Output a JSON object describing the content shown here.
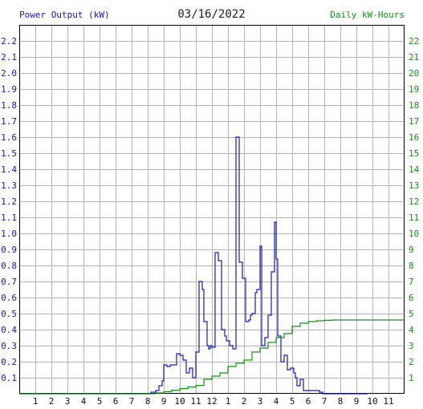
{
  "header": {
    "left_title": "Power Output (kW)",
    "center_title": "03/16/2022",
    "right_title": "Daily kW-Hours"
  },
  "colors": {
    "power_series": "#1a1ab4",
    "energy_series": "#1a8c1a",
    "left_axis_text": "#1a1aa0",
    "right_axis_text": "#1a8c1a",
    "grid": "#b4b4b4",
    "frame": "#000000"
  },
  "chart_data": {
    "type": "line",
    "title": "03/16/2022",
    "grid": true,
    "x_tick_labels": [
      "1",
      "2",
      "3",
      "4",
      "5",
      "6",
      "7",
      "8",
      "9",
      "10",
      "11",
      "12",
      "1",
      "2",
      "3",
      "4",
      "5",
      "6",
      "7",
      "8",
      "9",
      "10",
      "11"
    ],
    "x_tick_hours": [
      1,
      2,
      3,
      4,
      5,
      6,
      7,
      8,
      9,
      10,
      11,
      12,
      13,
      14,
      15,
      16,
      17,
      18,
      19,
      20,
      21,
      22,
      23
    ],
    "xlim": [
      0,
      24
    ],
    "y_left": {
      "label": "Power Output (kW)",
      "lim": [
        0,
        2.3
      ],
      "tick_labels": [
        "0.1",
        "0.2",
        "0.3",
        "0.4",
        "0.5",
        "0.6",
        "0.7",
        "0.8",
        "0.9",
        "1.0",
        "1.1",
        "1.2",
        "1.3",
        "1.4",
        "1.5",
        "1.6",
        "1.7",
        "1.8",
        "1.9",
        "2.0",
        "2.1",
        "2.2"
      ]
    },
    "y_right": {
      "label": "Daily kW-Hours",
      "lim": [
        0,
        23
      ],
      "tick_labels": [
        "1",
        "2",
        "3",
        "4",
        "5",
        "6",
        "7",
        "8",
        "9",
        "10",
        "11",
        "12",
        "13",
        "14",
        "15",
        "16",
        "17",
        "18",
        "19",
        "20",
        "21",
        "22"
      ]
    },
    "series": [
      {
        "name": "Power Output (kW)",
        "axis": "left",
        "x": [
          0,
          8.0,
          8.2,
          8.5,
          8.7,
          8.9,
          9.0,
          9.2,
          9.4,
          9.6,
          9.8,
          10.0,
          10.2,
          10.4,
          10.6,
          10.8,
          11.0,
          11.2,
          11.4,
          11.5,
          11.7,
          11.8,
          11.9,
          12.0,
          12.2,
          12.4,
          12.6,
          12.8,
          12.9,
          13.1,
          13.3,
          13.5,
          13.7,
          13.9,
          14.1,
          14.3,
          14.4,
          14.5,
          14.7,
          14.8,
          15.0,
          15.1,
          15.3,
          15.5,
          15.7,
          15.9,
          16.0,
          16.1,
          16.3,
          16.5,
          16.7,
          16.9,
          17.1,
          17.2,
          17.3,
          17.5,
          17.7,
          17.9,
          18.1,
          18.3,
          18.5,
          18.7,
          18.9,
          19.1,
          19.3,
          19.5,
          19.7,
          20.0,
          20.5,
          20.6,
          21.0,
          21.6,
          21.7
        ],
        "y": [
          0,
          0,
          0.01,
          0.02,
          0.05,
          0.08,
          0.18,
          0.17,
          0.18,
          0.18,
          0.25,
          0.24,
          0.21,
          0.13,
          0.16,
          0.1,
          0.26,
          0.7,
          0.65,
          0.45,
          0.3,
          0.28,
          0.3,
          0.29,
          0.88,
          0.83,
          0.4,
          0.36,
          0.33,
          0.3,
          0.28,
          1.6,
          0.82,
          0.72,
          0.45,
          0.46,
          0.49,
          0.5,
          0.63,
          0.65,
          0.92,
          0.3,
          0.35,
          0.49,
          0.76,
          1.07,
          0.84,
          0.36,
          0.2,
          0.24,
          0.15,
          0.16,
          0.13,
          0.1,
          0.05,
          0.09,
          0.02,
          0.02,
          0.02,
          0.02,
          0.02,
          0.01,
          0,
          0,
          0,
          0,
          0,
          0,
          0,
          0,
          0,
          0,
          0
        ]
      },
      {
        "name": "Daily kW-Hours",
        "axis": "right",
        "x": [
          0,
          8.0,
          8.5,
          9.0,
          9.5,
          10.0,
          10.5,
          11.0,
          11.5,
          12.0,
          12.5,
          13.0,
          13.5,
          14.0,
          14.5,
          15.0,
          15.5,
          16.0,
          16.5,
          17.0,
          17.5,
          18.0,
          18.5,
          19.0,
          19.5,
          20.0,
          24.0
        ],
        "y": [
          0,
          0,
          0.05,
          0.13,
          0.22,
          0.32,
          0.42,
          0.52,
          0.9,
          1.1,
          1.3,
          1.7,
          1.9,
          2.1,
          2.6,
          2.85,
          3.2,
          3.5,
          3.75,
          4.2,
          4.4,
          4.5,
          4.55,
          4.58,
          4.6,
          4.6,
          4.6
        ]
      }
    ]
  }
}
